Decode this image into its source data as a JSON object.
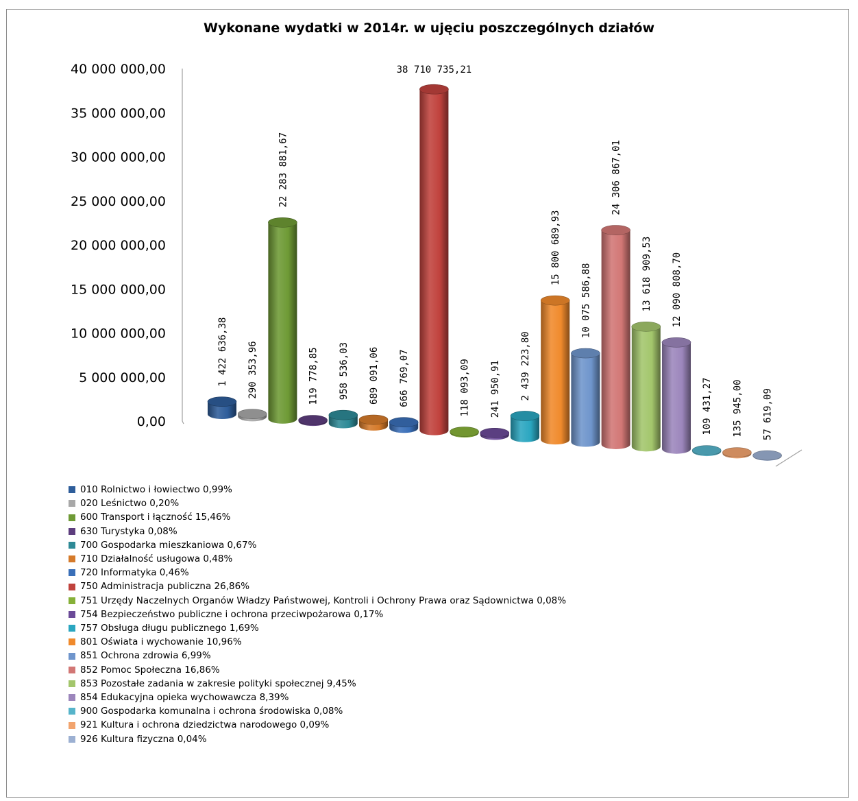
{
  "chart_data": {
    "type": "bar",
    "title": "Wykonane wydatki  w 2014r. w ujęciu poszczególnych działów",
    "xlabel": "",
    "ylabel": "",
    "ylim": [
      0,
      40000000
    ],
    "yticks": [
      "0,00",
      "5 000 000,00",
      "10 000 000,00",
      "15 000 000,00",
      "20 000 000,00",
      "25 000 000,00",
      "30 000 000,00",
      "35 000 000,00",
      "40 000 000,00"
    ],
    "grid": false,
    "legend_position": "bottom",
    "series": [
      {
        "name": "010 Rolnictwo i łowiectwo 0,99%",
        "value": 1422636.38,
        "label": "1 422 636,38",
        "color": "#2e5d9a"
      },
      {
        "name": "020 Leśnictwo 0,20%",
        "value": 290353.96,
        "label": "290 353,96",
        "color": "#a8a8a8"
      },
      {
        "name": "600 Transport i łączność 15,46%",
        "value": 22283881.67,
        "label": "22 283 881,67",
        "color": "#6e9a35"
      },
      {
        "name": "630 Turystyka 0,08%",
        "value": 119778.85,
        "label": "119 778,85",
        "color": "#5d3d7e"
      },
      {
        "name": "700 Gospodarka mieszkaniowa 0,67%",
        "value": 958536.03,
        "label": "958 536,03",
        "color": "#2e8a96"
      },
      {
        "name": "710 Działalność usługowa 0,48%",
        "value": 689091.06,
        "label": "689 091,06",
        "color": "#d57a2a"
      },
      {
        "name": "720 Informatyka 0,46%",
        "value": 666769.07,
        "label": "666 769,07",
        "color": "#3a6fb8"
      },
      {
        "name": "750 Administracja publiczna 26,86%",
        "value": 38710735.21,
        "label": "38 710 735,21",
        "color": "#c0423d"
      },
      {
        "name": "751 Urzędy Naczelnych Organów Władzy Państwowej, Kontroli i Ochrony Prawa oraz Sądownictwa 0,08%",
        "value": 118093.09,
        "label": "118 093,09",
        "color": "#86b038"
      },
      {
        "name": "754 Bezpieczeństwo publiczne i ochrona przeciwpożarowa 0,17%",
        "value": 241950.91,
        "label": "241 950,91",
        "color": "#6b4a98"
      },
      {
        "name": "757 Obsługa długu publicznego 1,69%",
        "value": 2439223.8,
        "label": "2 439 223,80",
        "color": "#2aa6c0"
      },
      {
        "name": "801 Oświata i wychowanie 10,96%",
        "value": 15800689.93,
        "label": "15 800 689,93",
        "color": "#f08a2c"
      },
      {
        "name": "851 Ochrona zdrowia 6,99%",
        "value": 10075586.88,
        "label": "10 075 586,88",
        "color": "#6f95cc"
      },
      {
        "name": "852 Pomoc Społeczna 16,86%",
        "value": 24306867.01,
        "label": "24 306 867,01",
        "color": "#d27775"
      },
      {
        "name": "853 Pozostałe zadania w zakresie polityki społecznej 9,45%",
        "value": 13618909.53,
        "label": "13 618 909,53",
        "color": "#a3c66c"
      },
      {
        "name": "854 Edukacyjna opieka wychowawcza 8,39%",
        "value": 12090808.7,
        "label": "12 090 808,70",
        "color": "#9c86bc"
      },
      {
        "name": "900 Gospodarka komunalna i ochrona środowiska 0,08%",
        "value": 109431.27,
        "label": "109 431,27",
        "color": "#56b4ca"
      },
      {
        "name": "921 Kultura i ochrona dziedzictwa narodowego 0,09%",
        "value": 135945.0,
        "label": "135 945,00",
        "color": "#f2a46e"
      },
      {
        "name": "926 Kultura fizyczna 0,04%",
        "value": 57619.09,
        "label": "57 619,09",
        "color": "#9cb0d2"
      }
    ]
  }
}
